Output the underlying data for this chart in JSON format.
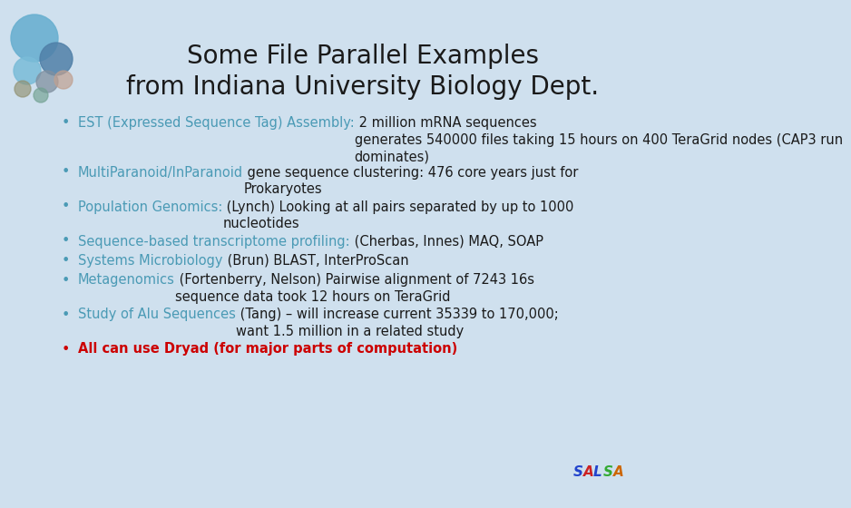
{
  "title_line1": "Some File Parallel Examples",
  "title_line2": "from Indiana University Biology Dept.",
  "title_color": "#1a1a1a",
  "title_fontsize": 20,
  "bg_color": "#cfe0ee",
  "text_color_dark": "#1a1a1a",
  "text_color_blue": "#4a9ab5",
  "text_color_red": "#cc0000",
  "body_fontsize": 10.5,
  "bullets": [
    {
      "colored_part": "EST (Expressed Sequence Tag) Assembly:",
      "normal_part": " 2 million mRNA sequences\ngenerates 540000 files taking 15 hours on 400 TeraGrid nodes (CAP3 run\ndominates)",
      "color": "#4a9ab5",
      "bullet_color": "#4a9ab5",
      "lines": 3
    },
    {
      "colored_part": "MultiParanoid/InParanoid",
      "normal_part": " gene sequence clustering: 476 core years just for\nProkaryotes",
      "color": "#4a9ab5",
      "bullet_color": "#4a9ab5",
      "lines": 2
    },
    {
      "colored_part": "Population Genomics:",
      "normal_part": " (Lynch) Looking at all pairs separated by up to 1000\nnucleotides",
      "color": "#4a9ab5",
      "bullet_color": "#4a9ab5",
      "lines": 2
    },
    {
      "colored_part": "Sequence-based transcriptome profiling:",
      "normal_part": " (Cherbas, Innes) MAQ, SOAP",
      "color": "#4a9ab5",
      "bullet_color": "#4a9ab5",
      "lines": 1
    },
    {
      "colored_part": "Systems Microbiology",
      "normal_part": " (Brun) BLAST, InterProScan",
      "color": "#4a9ab5",
      "bullet_color": "#4a9ab5",
      "lines": 1
    },
    {
      "colored_part": "Metagenomics",
      "normal_part": " (Fortenberry, Nelson) Pairwise alignment of 7243 16s\nsequence data took 12 hours on TeraGrid",
      "color": "#4a9ab5",
      "bullet_color": "#4a9ab5",
      "lines": 2
    },
    {
      "colored_part": "Study of Alu Sequences",
      "normal_part": " (Tang) – will increase current 35339 to 170,000;\nwant 1.5 million in a related study",
      "color": "#4a9ab5",
      "bullet_color": "#4a9ab5",
      "lines": 2
    },
    {
      "colored_part": "All can use Dryad (for major parts of computation)",
      "normal_part": "",
      "color": "#cc0000",
      "bullet_color": "#cc0000",
      "lines": 1
    }
  ],
  "salsa_colors": [
    "#2244cc",
    "#cc2222",
    "#2244cc",
    "#33aa33",
    "#cc6600"
  ],
  "salsa_letters": [
    "S",
    "A",
    "L",
    "S",
    "A"
  ]
}
